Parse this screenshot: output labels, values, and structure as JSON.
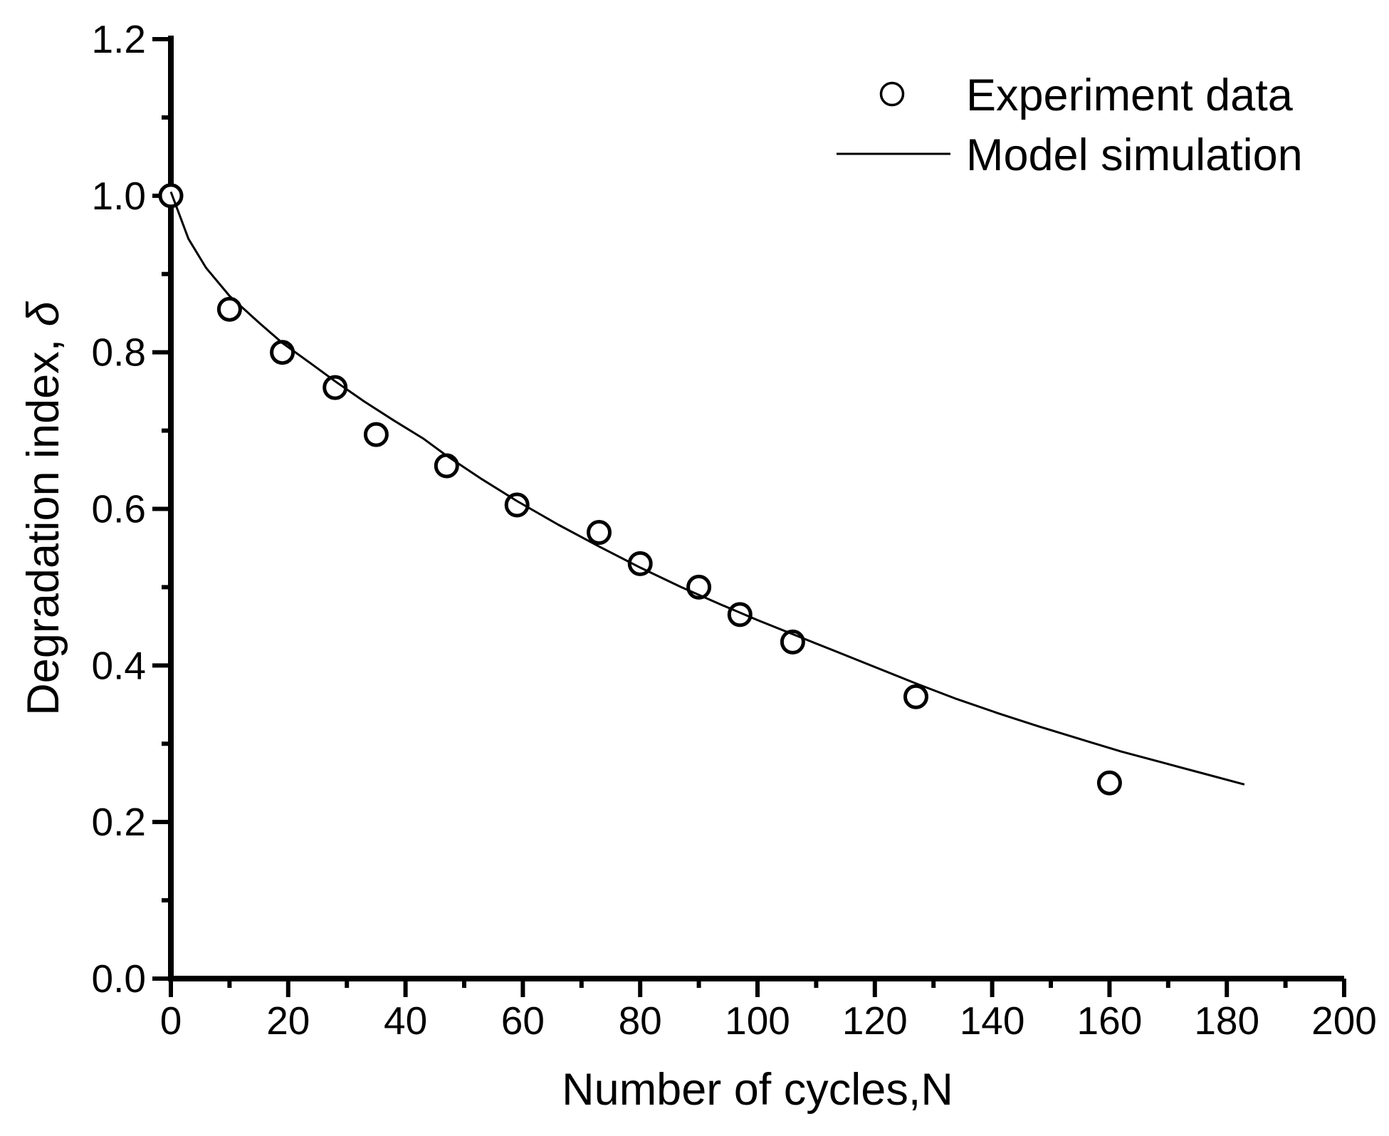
{
  "figure": {
    "background": "#ffffff",
    "ink_color": "#000000"
  },
  "labels": {
    "x_title": "Number of cycles,N",
    "y_title_text": "Degradation index, ",
    "y_title_symbol": "δ"
  },
  "legend": [
    {
      "marker": "open-circle",
      "label": "Experiment data"
    },
    {
      "marker": "line",
      "label": "Model simulation"
    }
  ],
  "chart_data": {
    "type": "scatter",
    "title": "",
    "xlabel": "Number of cycles,N",
    "ylabel": "Degradation index, δ",
    "xlim": [
      0,
      200
    ],
    "ylim": [
      0,
      1.2
    ],
    "grid": false,
    "legend_position": "top-right",
    "x_major_ticks": [
      0,
      20,
      40,
      60,
      80,
      100,
      120,
      140,
      160,
      180,
      200
    ],
    "x_tick_labels": [
      "0",
      "20",
      "40",
      "60",
      "80",
      "100",
      "120",
      "140",
      "160",
      "180",
      "200"
    ],
    "x_minor_step": 10,
    "y_major_ticks": [
      0.0,
      0.2,
      0.4,
      0.6,
      0.8,
      1.0,
      1.2
    ],
    "y_tick_labels": [
      "0.0",
      "0.2",
      "0.4",
      "0.6",
      "0.8",
      "1.0",
      "1.2"
    ],
    "y_minor_step": 0.1,
    "series": [
      {
        "name": "Experiment data",
        "type": "scatter",
        "marker": "open-circle",
        "points": [
          [
            0,
            1.0
          ],
          [
            10,
            0.855
          ],
          [
            19,
            0.8
          ],
          [
            28,
            0.755
          ],
          [
            35,
            0.695
          ],
          [
            47,
            0.655
          ],
          [
            59,
            0.605
          ],
          [
            73,
            0.57
          ],
          [
            80,
            0.53
          ],
          [
            90,
            0.5
          ],
          [
            97,
            0.465
          ],
          [
            106,
            0.43
          ],
          [
            127,
            0.36
          ],
          [
            160,
            0.25
          ]
        ]
      },
      {
        "name": "Model simulation",
        "type": "line",
        "points": [
          [
            0,
            1.005
          ],
          [
            3,
            0.945
          ],
          [
            6,
            0.908
          ],
          [
            10,
            0.872
          ],
          [
            15,
            0.838
          ],
          [
            19,
            0.812
          ],
          [
            24,
            0.785
          ],
          [
            28,
            0.763
          ],
          [
            33,
            0.737
          ],
          [
            38,
            0.713
          ],
          [
            43,
            0.69
          ],
          [
            47,
            0.668
          ],
          [
            53,
            0.638
          ],
          [
            59,
            0.61
          ],
          [
            66,
            0.58
          ],
          [
            73,
            0.552
          ],
          [
            80,
            0.525
          ],
          [
            87,
            0.5
          ],
          [
            94,
            0.477
          ],
          [
            100,
            0.458
          ],
          [
            106,
            0.44
          ],
          [
            113,
            0.419
          ],
          [
            120,
            0.398
          ],
          [
            127,
            0.377
          ],
          [
            134,
            0.357
          ],
          [
            141,
            0.339
          ],
          [
            148,
            0.322
          ],
          [
            155,
            0.306
          ],
          [
            162,
            0.29
          ],
          [
            169,
            0.276
          ],
          [
            176,
            0.262
          ],
          [
            183,
            0.248
          ]
        ]
      }
    ]
  }
}
